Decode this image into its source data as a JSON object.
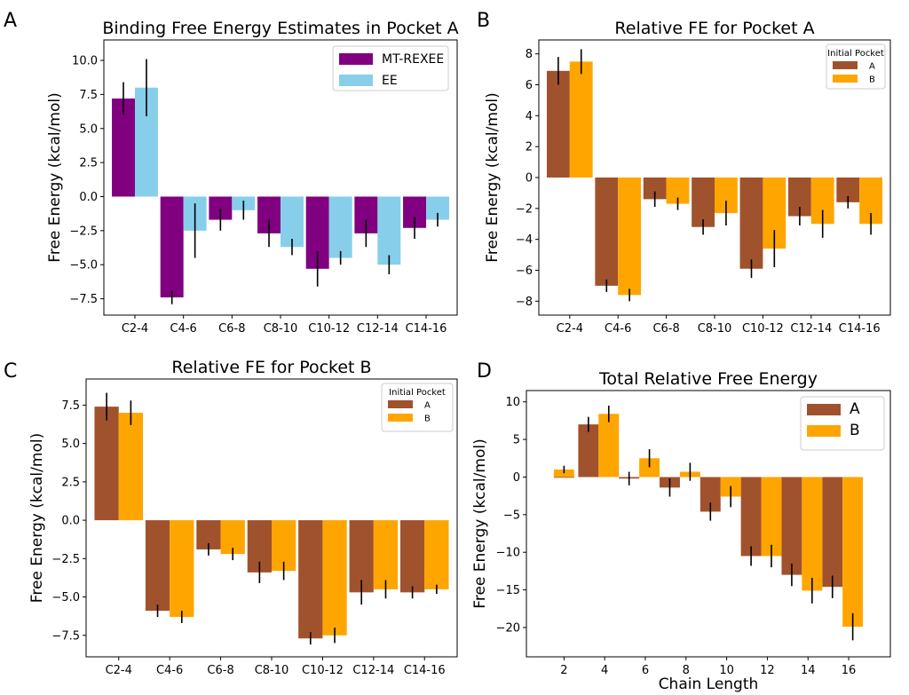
{
  "colors": {
    "purple": "#800080",
    "skyblue": "#87CEEB",
    "sienna": "#A0522D",
    "orange": "#FFA500",
    "err": "#000000"
  },
  "chart_data": [
    {
      "id": "A",
      "type": "bar",
      "panel_label": "A",
      "title": "Binding Free Energy Estimates in Pocket A",
      "xlabel": "",
      "ylabel": "Free Energy (kcal/mol)",
      "categories": [
        "C2-4",
        "C4-6",
        "C6-8",
        "C8-10",
        "C10-12",
        "C12-14",
        "C14-16"
      ],
      "ylim": [
        -8.7,
        11.5
      ],
      "yticks": [
        -7.5,
        -5.0,
        -2.5,
        0.0,
        2.5,
        5.0,
        7.5,
        10.0
      ],
      "ytick_labels": [
        "−7.5",
        "−5.0",
        "−2.5",
        "0.0",
        "2.5",
        "5.0",
        "7.5",
        "10.0"
      ],
      "legend": {
        "title": "",
        "loc": "upper right"
      },
      "series": [
        {
          "name": "MT-REXEE",
          "color": "purple",
          "values": [
            7.2,
            -7.4,
            -1.7,
            -2.7,
            -5.3,
            -2.7,
            -2.3
          ],
          "errors": [
            1.2,
            0.5,
            0.8,
            1.0,
            1.3,
            1.0,
            0.8
          ]
        },
        {
          "name": "EE",
          "color": "skyblue",
          "values": [
            8.0,
            -2.5,
            -1.0,
            -3.7,
            -4.5,
            -5.0,
            -1.7
          ],
          "errors": [
            2.1,
            2.0,
            0.7,
            0.6,
            0.5,
            0.7,
            0.5
          ]
        }
      ]
    },
    {
      "id": "B",
      "type": "bar",
      "panel_label": "B",
      "title": "Relative FE for Pocket A",
      "xlabel": "",
      "ylabel": "Free Energy (kcal/mol)",
      "categories": [
        "C2-4",
        "C4-6",
        "C6-8",
        "C8-10",
        "C10-12",
        "C12-14",
        "C14-16"
      ],
      "ylim": [
        -8.9,
        8.9
      ],
      "yticks": [
        -8,
        -6,
        -4,
        -2,
        0,
        2,
        4,
        6,
        8
      ],
      "ytick_labels": [
        "−8",
        "−6",
        "−4",
        "−2",
        "0",
        "2",
        "4",
        "6",
        "8"
      ],
      "legend": {
        "title": "Initial Pocket",
        "loc": "upper right"
      },
      "series": [
        {
          "name": "A",
          "color": "sienna",
          "values": [
            6.9,
            -7.0,
            -1.4,
            -3.2,
            -5.9,
            -2.5,
            -1.6
          ],
          "errors": [
            0.9,
            0.4,
            0.5,
            0.5,
            0.6,
            0.6,
            0.4
          ]
        },
        {
          "name": "B",
          "color": "orange",
          "values": [
            7.5,
            -7.6,
            -1.7,
            -2.3,
            -4.6,
            -3.0,
            -3.0
          ],
          "errors": [
            0.8,
            0.4,
            0.4,
            0.8,
            1.2,
            0.9,
            0.7
          ]
        }
      ]
    },
    {
      "id": "C",
      "type": "bar",
      "panel_label": "C",
      "title": "Relative FE for Pocket B",
      "xlabel": "",
      "ylabel": "Free Energy (kcal/mol)",
      "categories": [
        "C2-4",
        "C4-6",
        "C6-8",
        "C8-10",
        "C10-12",
        "C12-14",
        "C14-16"
      ],
      "ylim": [
        -8.9,
        9.2
      ],
      "yticks": [
        -7.5,
        -5.0,
        -2.5,
        0.0,
        2.5,
        5.0,
        7.5
      ],
      "ytick_labels": [
        "−7.5",
        "−5.0",
        "−2.5",
        "0.0",
        "2.5",
        "5.0",
        "7.5"
      ],
      "legend": {
        "title": "Initial Pocket",
        "loc": "upper right"
      },
      "series": [
        {
          "name": "A",
          "color": "sienna",
          "values": [
            7.4,
            -5.9,
            -1.9,
            -3.4,
            -7.7,
            -4.7,
            -4.7
          ],
          "errors": [
            0.9,
            0.4,
            0.4,
            0.7,
            0.4,
            0.8,
            0.4
          ]
        },
        {
          "name": "B",
          "color": "orange",
          "values": [
            7.0,
            -6.3,
            -2.2,
            -3.3,
            -7.5,
            -4.5,
            -4.5
          ],
          "errors": [
            0.8,
            0.4,
            0.4,
            0.6,
            0.5,
            0.6,
            0.3
          ]
        }
      ]
    },
    {
      "id": "D",
      "type": "bar",
      "panel_label": "D",
      "title": "Total Relative Free Energy",
      "xlabel": "Chain Length",
      "ylabel": "Free Energy (kcal/mol)",
      "categories": [
        "2",
        "3",
        "4",
        "5",
        "6",
        "7",
        "8",
        "9",
        "10",
        "11",
        "12",
        "13",
        "14",
        "15",
        "16"
      ],
      "xlim": [
        0.15,
        18.05
      ],
      "xticks": [
        2,
        4,
        6,
        8,
        10,
        12,
        14,
        16
      ],
      "ylim": [
        -23.9,
        11.5
      ],
      "yticks": [
        -20,
        -15,
        -10,
        -5,
        0,
        5,
        10
      ],
      "ytick_labels": [
        "−20",
        "−15",
        "−10",
        "−5",
        "0",
        "5",
        "10"
      ],
      "legend": {
        "title": "",
        "loc": "upper right"
      },
      "grouped_x": true,
      "series": [
        {
          "name": "A",
          "color": "sienna",
          "x": [
            2,
            3.2,
            5.2,
            7.2,
            9.2,
            11.2,
            13.2,
            15.2
          ],
          "values": [
            0.0,
            7.0,
            -0.2,
            -1.4,
            -4.6,
            -10.5,
            -13.0,
            -14.6
          ],
          "errors": [
            0.0,
            1.0,
            0.9,
            1.2,
            1.2,
            1.3,
            1.5,
            1.5
          ]
        },
        {
          "name": "B",
          "color": "orange",
          "x": [
            2.0,
            4.2,
            6.2,
            8.2,
            10.2,
            12.2,
            14.2,
            16.2
          ],
          "values": [
            1.0,
            8.4,
            2.5,
            0.7,
            -2.6,
            -10.5,
            -15.1,
            -19.9
          ],
          "errors": [
            0.5,
            1.1,
            1.2,
            1.2,
            1.4,
            1.5,
            1.7,
            1.8
          ]
        }
      ]
    }
  ]
}
